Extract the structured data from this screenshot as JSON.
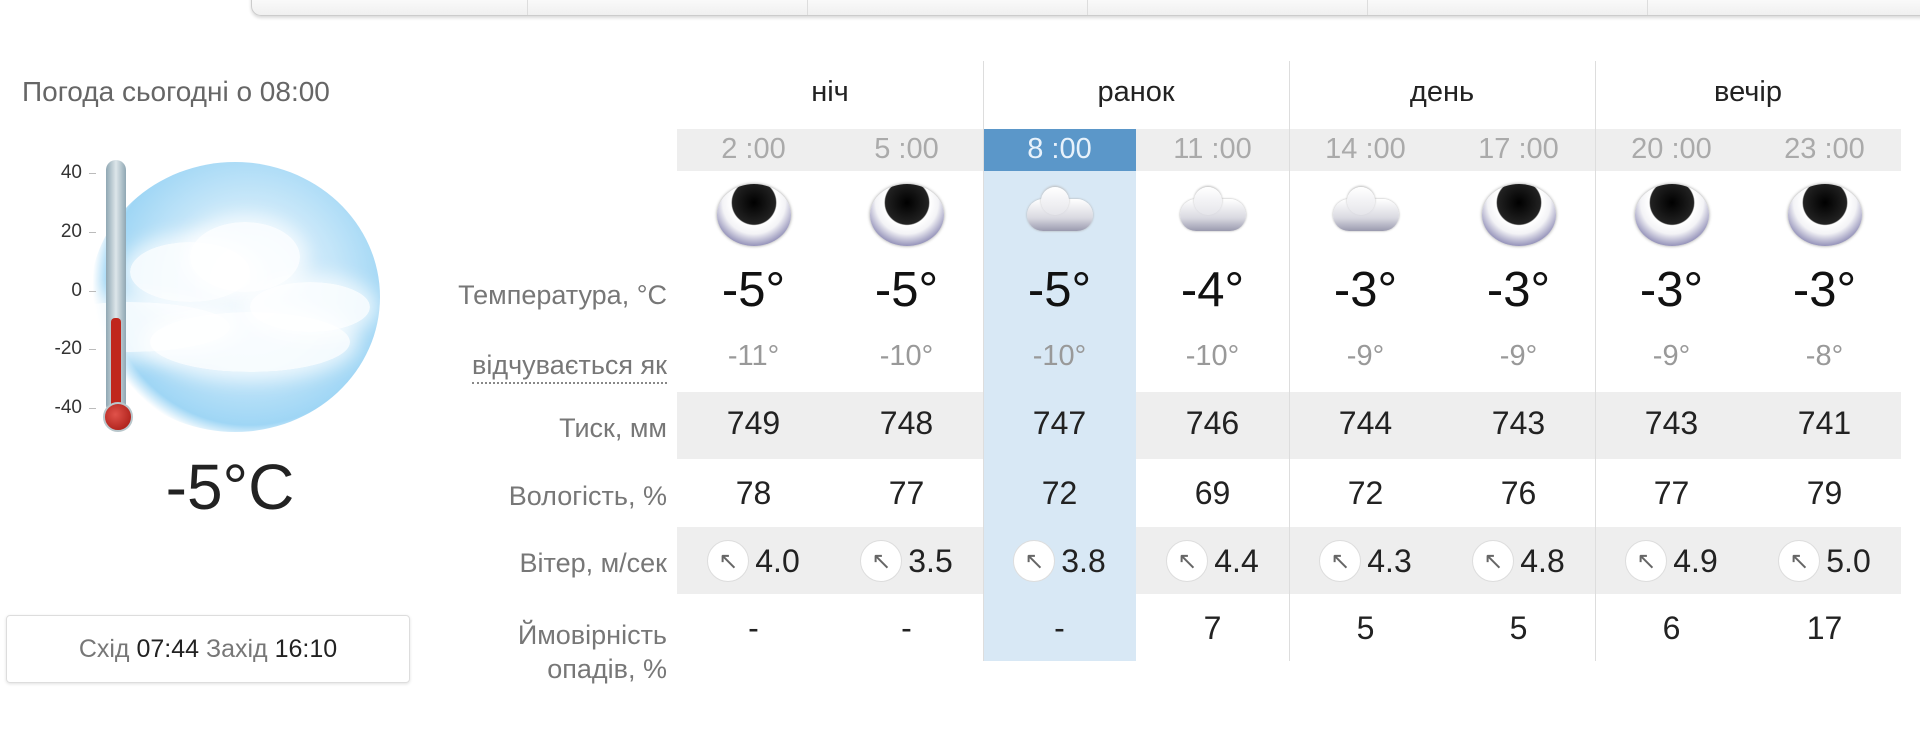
{
  "current": {
    "title": "Погода сьогодні о 08:00",
    "temperature": "-5°C",
    "thermometer_value": -5,
    "scale": [
      "40",
      "20",
      "0",
      "-20",
      "-40"
    ],
    "sunrise_label": "Схід",
    "sunrise": "07:44",
    "sunset_label": "Захід",
    "sunset": "16:10"
  },
  "labels": {
    "temperature": "Температура, °C",
    "feels": "відчувається як",
    "pressure": "Тиск, мм",
    "humidity": "Вологість, %",
    "wind": "Вітер, м/сек",
    "precip_1": "Ймовірність",
    "precip_2": "опадів, %"
  },
  "periods": [
    "ніч",
    "ранок",
    "день",
    "вечір"
  ],
  "selected_column": 2,
  "colors": {
    "highlight": "#d8e8f5",
    "selected_hour": "#5b97c9",
    "band": "#eeeeee"
  },
  "columns": [
    {
      "hour": "2 :00",
      "icon": "overcast-night-icon",
      "temp": "-5°",
      "feels": "-11°",
      "pressure": "749",
      "humidity": "78",
      "wind_dir": "↖",
      "wind": "4.0",
      "precip": "-"
    },
    {
      "hour": "5 :00",
      "icon": "overcast-night-icon",
      "temp": "-5°",
      "feels": "-10°",
      "pressure": "748",
      "humidity": "77",
      "wind_dir": "↖",
      "wind": "3.5",
      "precip": "-"
    },
    {
      "hour": "8 :00",
      "icon": "cloudy-icon",
      "temp": "-5°",
      "feels": "-10°",
      "pressure": "747",
      "humidity": "72",
      "wind_dir": "↖",
      "wind": "3.8",
      "precip": "-"
    },
    {
      "hour": "11 :00",
      "icon": "cloudy-icon",
      "temp": "-4°",
      "feels": "-10°",
      "pressure": "746",
      "humidity": "69",
      "wind_dir": "↖",
      "wind": "4.4",
      "precip": "7"
    },
    {
      "hour": "14 :00",
      "icon": "cloudy-icon",
      "temp": "-3°",
      "feels": "-9°",
      "pressure": "744",
      "humidity": "72",
      "wind_dir": "↖",
      "wind": "4.3",
      "precip": "5"
    },
    {
      "hour": "17 :00",
      "icon": "overcast-night-icon",
      "temp": "-3°",
      "feels": "-9°",
      "pressure": "743",
      "humidity": "76",
      "wind_dir": "↖",
      "wind": "4.8",
      "precip": "5"
    },
    {
      "hour": "20 :00",
      "icon": "overcast-night-icon",
      "temp": "-3°",
      "feels": "-9°",
      "pressure": "743",
      "humidity": "77",
      "wind_dir": "↖",
      "wind": "4.9",
      "precip": "6"
    },
    {
      "hour": "23 :00",
      "icon": "overcast-night-icon",
      "temp": "-3°",
      "feels": "-8°",
      "pressure": "741",
      "humidity": "79",
      "wind_dir": "↖",
      "wind": "5.0",
      "precip": "17"
    }
  ]
}
